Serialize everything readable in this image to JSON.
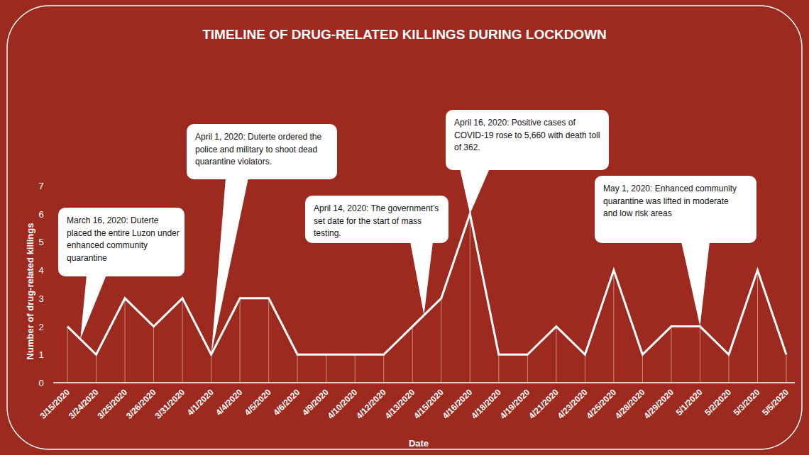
{
  "chart_data": {
    "type": "line",
    "title": "TIMELINE OF DRUG-RELATED KILLINGS DURING LOCKDOWN",
    "x_label": "Date",
    "y_label": "Number of drug-related killings",
    "categories": [
      "3/15/2020",
      "3/24/2020",
      "3/25/2020",
      "3/26/2020",
      "3/31/2020",
      "4/1/2020",
      "4/4/2020",
      "4/5/2020",
      "4/6/2020",
      "4/9/2020",
      "4/10/2020",
      "4/12/2020",
      "4/13/2020",
      "4/15/2020",
      "4/16/2020",
      "4/18/2020",
      "4/19/2020",
      "4/21/2020",
      "4/23/2020",
      "4/25/2020",
      "4/28/2020",
      "4/29/2020",
      "5/1/2020",
      "5/2/2020",
      "5/3/2020",
      "5/5/2020"
    ],
    "values": [
      2,
      1,
      3,
      2,
      3,
      1,
      3,
      3,
      1,
      1,
      1,
      1,
      2,
      3,
      6,
      1,
      1,
      2,
      1,
      4,
      1,
      2,
      2,
      1,
      4,
      1
    ],
    "color": "#ffffff",
    "ylim": [
      0,
      7
    ],
    "yticks": [
      0,
      1,
      2,
      3,
      4,
      5,
      6,
      7
    ],
    "grid": false,
    "annotations": [
      {
        "lines": [
          "March 16, 2020: Duterte",
          "placed the entire Luzon under",
          "enhanced community",
          "quarantine"
        ]
      },
      {
        "lines": [
          "April 1, 2020: Duterte ordered the",
          "police and military to shoot dead",
          "quarantine violators."
        ]
      },
      {
        "lines": [
          "April 14, 2020: The government’s",
          "set date for the start of mass",
          "testing."
        ]
      },
      {
        "lines": [
          "April 16, 2020: Positive cases of",
          "COVID-19 rose to 5,660 with death toll",
          "of 362."
        ]
      },
      {
        "lines": [
          "May 1, 2020: Enhanced community",
          "quarantine was lifted in moderate",
          "and low risk areas"
        ]
      }
    ]
  }
}
